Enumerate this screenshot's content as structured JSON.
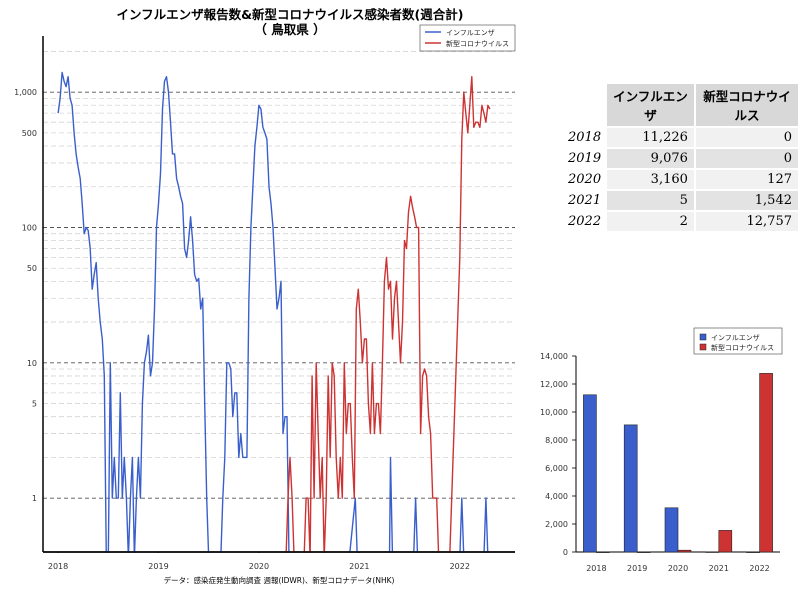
{
  "titles": {
    "main": "インフルエンザ報告数&新型コロナウイルス感染者数(週合計)",
    "sub": "（ 鳥取県 ）"
  },
  "source_note": "データ：感染症発生動向調査 週報(IDWR)、新型コロナデータ(NHK)",
  "colors": {
    "influenza": "#3a5fcd",
    "covid": "#cd3333"
  },
  "chart_data": [
    {
      "type": "line",
      "title": "インフルエンザ報告数&新型コロナウイルス感染者数(週合計)",
      "subtitle": "（ 鳥取県 ）",
      "xlabel": "",
      "ylabel": "",
      "yscale": "log",
      "ylim": [
        0.4,
        2600
      ],
      "xlim": [
        2017.85,
        2022.55
      ],
      "x_ticks": [
        "2018",
        "2019",
        "2020",
        "2021",
        "2022"
      ],
      "y_ticks": [
        "1",
        "5",
        "10",
        "50",
        "100",
        "500",
        "1,000"
      ],
      "legend": {
        "position": "top-right",
        "entries": [
          "インフルエンザ",
          "新型コロナウイルス"
        ]
      },
      "grid": "horizontal dashed",
      "series": [
        {
          "name": "インフルエンザ",
          "points": [
            [
              2018.0,
              700
            ],
            [
              2018.02,
              900
            ],
            [
              2018.04,
              1400
            ],
            [
              2018.06,
              1200
            ],
            [
              2018.08,
              1100
            ],
            [
              2018.1,
              1300
            ],
            [
              2018.12,
              900
            ],
            [
              2018.14,
              800
            ],
            [
              2018.16,
              500
            ],
            [
              2018.18,
              350
            ],
            [
              2018.2,
              280
            ],
            [
              2018.22,
              230
            ],
            [
              2018.24,
              150
            ],
            [
              2018.26,
              90
            ],
            [
              2018.28,
              100
            ],
            [
              2018.3,
              95
            ],
            [
              2018.32,
              70
            ],
            [
              2018.34,
              35
            ],
            [
              2018.36,
              45
            ],
            [
              2018.38,
              55
            ],
            [
              2018.4,
              30
            ],
            [
              2018.42,
              20
            ],
            [
              2018.44,
              15
            ],
            [
              2018.46,
              8
            ],
            [
              2018.48,
              0
            ],
            [
              2018.5,
              0
            ],
            [
              2018.52,
              10
            ],
            [
              2018.54,
              1
            ],
            [
              2018.56,
              2
            ],
            [
              2018.58,
              1
            ],
            [
              2018.6,
              1
            ],
            [
              2018.62,
              6
            ],
            [
              2018.64,
              1
            ],
            [
              2018.66,
              2
            ],
            [
              2018.68,
              1
            ],
            [
              2018.7,
              0
            ],
            [
              2018.72,
              1
            ],
            [
              2018.74,
              2
            ],
            [
              2018.76,
              0
            ],
            [
              2018.78,
              1
            ],
            [
              2018.8,
              2
            ],
            [
              2018.82,
              1
            ],
            [
              2018.84,
              5
            ],
            [
              2018.86,
              10
            ],
            [
              2018.88,
              12
            ],
            [
              2018.9,
              16
            ],
            [
              2018.92,
              8
            ],
            [
              2018.94,
              10
            ],
            [
              2018.96,
              25
            ],
            [
              2018.98,
              100
            ],
            [
              2019.0,
              150
            ],
            [
              2019.02,
              250
            ],
            [
              2019.04,
              750
            ],
            [
              2019.06,
              1200
            ],
            [
              2019.08,
              1300
            ],
            [
              2019.1,
              1000
            ],
            [
              2019.12,
              600
            ],
            [
              2019.14,
              350
            ],
            [
              2019.16,
              350
            ],
            [
              2019.18,
              230
            ],
            [
              2019.2,
              200
            ],
            [
              2019.22,
              170
            ],
            [
              2019.24,
              150
            ],
            [
              2019.26,
              70
            ],
            [
              2019.28,
              60
            ],
            [
              2019.3,
              80
            ],
            [
              2019.32,
              120
            ],
            [
              2019.34,
              80
            ],
            [
              2019.36,
              45
            ],
            [
              2019.38,
              40
            ],
            [
              2019.4,
              42
            ],
            [
              2019.42,
              25
            ],
            [
              2019.44,
              30
            ],
            [
              2019.46,
              5
            ],
            [
              2019.48,
              1
            ],
            [
              2019.5,
              0
            ],
            [
              2019.52,
              0
            ],
            [
              2019.54,
              0
            ],
            [
              2019.56,
              0
            ],
            [
              2019.58,
              0
            ],
            [
              2019.6,
              0
            ],
            [
              2019.62,
              0
            ],
            [
              2019.64,
              1
            ],
            [
              2019.66,
              2
            ],
            [
              2019.68,
              10
            ],
            [
              2019.7,
              10
            ],
            [
              2019.72,
              9
            ],
            [
              2019.74,
              4
            ],
            [
              2019.76,
              6
            ],
            [
              2019.78,
              6
            ],
            [
              2019.8,
              2
            ],
            [
              2019.82,
              3
            ],
            [
              2019.84,
              2
            ],
            [
              2019.86,
              2
            ],
            [
              2019.88,
              2
            ],
            [
              2019.9,
              30
            ],
            [
              2019.92,
              100
            ],
            [
              2019.94,
              200
            ],
            [
              2019.96,
              400
            ],
            [
              2019.98,
              550
            ],
            [
              2020.0,
              800
            ],
            [
              2020.02,
              750
            ],
            [
              2020.04,
              550
            ],
            [
              2020.06,
              500
            ],
            [
              2020.08,
              450
            ],
            [
              2020.1,
              200
            ],
            [
              2020.12,
              150
            ],
            [
              2020.14,
              100
            ],
            [
              2020.16,
              50
            ],
            [
              2020.18,
              25
            ],
            [
              2020.2,
              30
            ],
            [
              2020.22,
              40
            ],
            [
              2020.24,
              3
            ],
            [
              2020.26,
              4
            ],
            [
              2020.28,
              4
            ],
            [
              2020.3,
              0
            ],
            [
              2020.4,
              0
            ],
            [
              2020.6,
              0
            ],
            [
              2020.8,
              0
            ],
            [
              2020.9,
              0
            ],
            [
              2020.96,
              1
            ],
            [
              2020.98,
              0
            ],
            [
              2021.0,
              0
            ],
            [
              2021.3,
              0
            ],
            [
              2021.31,
              2
            ],
            [
              2021.33,
              0
            ],
            [
              2021.5,
              0
            ],
            [
              2021.54,
              0
            ],
            [
              2021.56,
              1
            ],
            [
              2021.58,
              0
            ],
            [
              2022.0,
              0
            ],
            [
              2022.02,
              1
            ],
            [
              2022.04,
              0
            ],
            [
              2022.24,
              0
            ],
            [
              2022.26,
              1
            ],
            [
              2022.28,
              0
            ],
            [
              2022.5,
              0
            ]
          ]
        },
        {
          "name": "新型コロナウイルス",
          "points": [
            [
              2020.25,
              0
            ],
            [
              2020.27,
              0
            ],
            [
              2020.29,
              1
            ],
            [
              2020.31,
              2
            ],
            [
              2020.33,
              1
            ],
            [
              2020.35,
              0
            ],
            [
              2020.45,
              0
            ],
            [
              2020.47,
              1
            ],
            [
              2020.49,
              1
            ],
            [
              2020.51,
              0
            ],
            [
              2020.53,
              8
            ],
            [
              2020.55,
              1
            ],
            [
              2020.57,
              10
            ],
            [
              2020.59,
              3
            ],
            [
              2020.61,
              1
            ],
            [
              2020.63,
              2
            ],
            [
              2020.65,
              0
            ],
            [
              2020.67,
              1
            ],
            [
              2020.69,
              8
            ],
            [
              2020.71,
              2
            ],
            [
              2020.73,
              10
            ],
            [
              2020.75,
              8
            ],
            [
              2020.77,
              2
            ],
            [
              2020.79,
              1
            ],
            [
              2020.81,
              2
            ],
            [
              2020.83,
              1
            ],
            [
              2020.85,
              10
            ],
            [
              2020.87,
              3
            ],
            [
              2020.89,
              5
            ],
            [
              2020.91,
              5
            ],
            [
              2020.93,
              2
            ],
            [
              2020.95,
              1
            ],
            [
              2020.97,
              25
            ],
            [
              2020.99,
              35
            ],
            [
              2021.01,
              20
            ],
            [
              2021.03,
              10
            ],
            [
              2021.05,
              15
            ],
            [
              2021.07,
              15
            ],
            [
              2021.09,
              5
            ],
            [
              2021.11,
              3
            ],
            [
              2021.13,
              10
            ],
            [
              2021.15,
              3
            ],
            [
              2021.17,
              5
            ],
            [
              2021.19,
              5
            ],
            [
              2021.21,
              3
            ],
            [
              2021.23,
              10
            ],
            [
              2021.25,
              40
            ],
            [
              2021.27,
              60
            ],
            [
              2021.29,
              35
            ],
            [
              2021.31,
              40
            ],
            [
              2021.33,
              15
            ],
            [
              2021.35,
              30
            ],
            [
              2021.37,
              40
            ],
            [
              2021.39,
              20
            ],
            [
              2021.41,
              10
            ],
            [
              2021.43,
              20
            ],
            [
              2021.45,
              80
            ],
            [
              2021.47,
              70
            ],
            [
              2021.49,
              130
            ],
            [
              2021.51,
              170
            ],
            [
              2021.53,
              140
            ],
            [
              2021.55,
              120
            ],
            [
              2021.57,
              100
            ],
            [
              2021.59,
              100
            ],
            [
              2021.61,
              3
            ],
            [
              2021.63,
              8
            ],
            [
              2021.65,
              9
            ],
            [
              2021.67,
              8
            ],
            [
              2021.69,
              4
            ],
            [
              2021.71,
              3
            ],
            [
              2021.73,
              1
            ],
            [
              2021.75,
              1
            ],
            [
              2021.77,
              1
            ],
            [
              2021.79,
              0
            ],
            [
              2021.9,
              0
            ],
            [
              2022.0,
              60
            ],
            [
              2022.02,
              450
            ],
            [
              2022.04,
              1000
            ],
            [
              2022.06,
              700
            ],
            [
              2022.08,
              500
            ],
            [
              2022.1,
              800
            ],
            [
              2022.12,
              1300
            ],
            [
              2022.14,
              550
            ],
            [
              2022.16,
              600
            ],
            [
              2022.18,
              600
            ],
            [
              2022.2,
              550
            ],
            [
              2022.22,
              800
            ],
            [
              2022.24,
              700
            ],
            [
              2022.26,
              600
            ],
            [
              2022.28,
              800
            ],
            [
              2022.3,
              750
            ]
          ]
        }
      ]
    },
    {
      "type": "table",
      "columns": [
        "インフルエンザ",
        "新型コロナウイルス"
      ],
      "rows": [
        {
          "year": "2018",
          "influenza": "11,226",
          "covid": "0"
        },
        {
          "year": "2019",
          "influenza": "9,076",
          "covid": "0"
        },
        {
          "year": "2020",
          "influenza": "3,160",
          "covid": "127"
        },
        {
          "year": "2021",
          "influenza": "5",
          "covid": "1,542"
        },
        {
          "year": "2022",
          "influenza": "2",
          "covid": "12,757"
        }
      ]
    },
    {
      "type": "bar",
      "categories": [
        "2018",
        "2019",
        "2020",
        "2021",
        "2022"
      ],
      "series": [
        {
          "name": "インフルエンザ",
          "values": [
            11226,
            9076,
            3160,
            5,
            2
          ]
        },
        {
          "name": "新型コロナウイルス",
          "values": [
            0,
            0,
            127,
            1542,
            12757
          ]
        }
      ],
      "ylim": [
        0,
        14000
      ],
      "y_ticks": [
        "0",
        "2,000",
        "4,000",
        "6,000",
        "8,000",
        "10,000",
        "12,000",
        "14,000"
      ],
      "legend": {
        "position": "top-right",
        "entries": [
          "インフルエンザ",
          "新型コロナウイルス"
        ]
      },
      "xlabel": "",
      "ylabel": ""
    }
  ]
}
